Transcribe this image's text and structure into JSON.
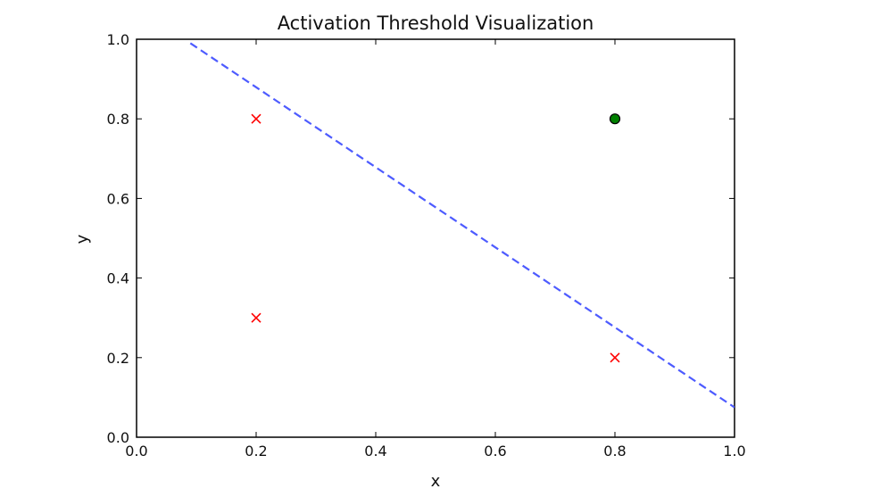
{
  "chart_data": {
    "type": "scatter",
    "title": "Activation Threshold Visualization",
    "xlabel": "x",
    "ylabel": "y",
    "xlim": [
      0.0,
      1.0
    ],
    "ylim": [
      0.0,
      1.0
    ],
    "xticks": [
      "0.0",
      "0.2",
      "0.4",
      "0.6",
      "0.8",
      "1.0"
    ],
    "yticks": [
      "0.0",
      "0.2",
      "0.4",
      "0.6",
      "0.8",
      "1.0"
    ],
    "grid": false,
    "series": [
      {
        "marker": "x",
        "color": "#ff0000",
        "points": [
          {
            "x": 0.2,
            "y": 0.8
          },
          {
            "x": 0.2,
            "y": 0.3
          },
          {
            "x": 0.8,
            "y": 0.2
          }
        ]
      },
      {
        "marker": "circle",
        "color": "#008000",
        "points": [
          {
            "x": 0.8,
            "y": 0.8
          }
        ]
      }
    ],
    "lines": [
      {
        "style": "dashed",
        "color": "#4d5bff",
        "x": [
          0.09,
          1.0
        ],
        "y": [
          0.99,
          0.075
        ]
      }
    ]
  }
}
